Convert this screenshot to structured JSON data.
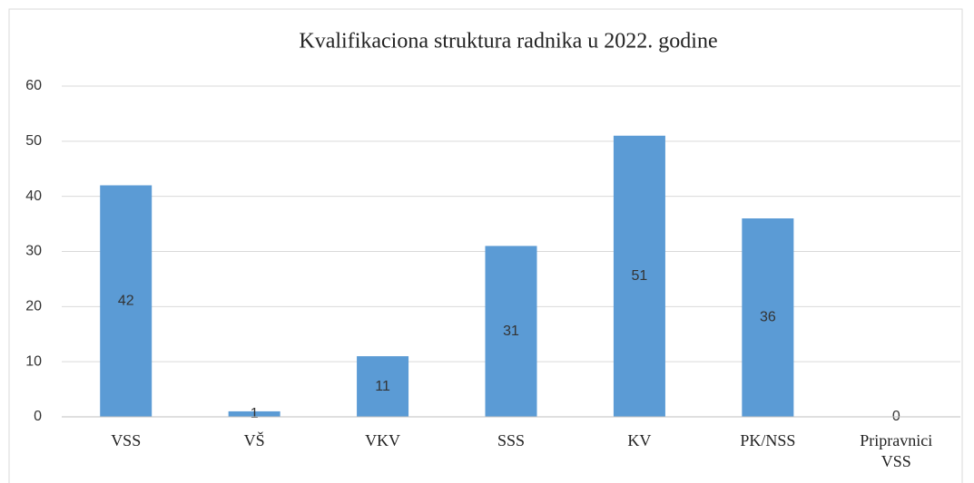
{
  "chart_data": {
    "type": "bar",
    "title": "Kvalifikaciona struktura radnika u 2022. godine",
    "categories": [
      "VSS",
      "VŠ",
      "VKV",
      "SSS",
      "KV",
      "PK/NSS",
      "Pripravnici VSS"
    ],
    "values": [
      42,
      1,
      11,
      31,
      51,
      36,
      0
    ],
    "color": "#5b9bd5",
    "ylim": [
      0,
      60
    ],
    "yticks": [
      0,
      10,
      20,
      30,
      40,
      50,
      60
    ],
    "grid": true
  }
}
